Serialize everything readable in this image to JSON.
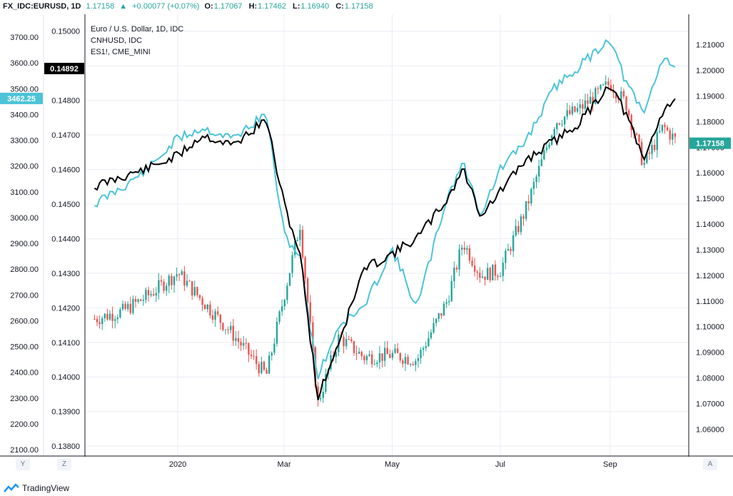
{
  "header": {
    "symbol": "FX_IDC:EURUSD, 1D",
    "last": "1.17158",
    "change_arrow": "▲",
    "change": "+0.00077 (+0.07%)",
    "ohlc": [
      {
        "label": "O:",
        "value": "1.17067"
      },
      {
        "label": "H:",
        "value": "1.17462"
      },
      {
        "label": "L:",
        "value": "1.16940"
      },
      {
        "label": "C:",
        "value": "1.17158"
      }
    ]
  },
  "legend": [
    "Euro / U.S. Dollar, 1D, IDC",
    "CNHUSD, IDC",
    "ES1!, CME_MINI"
  ],
  "buttons": {
    "y": "Y",
    "z": "Z",
    "a": "A"
  },
  "branding": "TradingView",
  "colors": {
    "up": "#26a69a",
    "down": "#ef5350",
    "cnh": "#4dc3d8",
    "es": "#000000"
  },
  "chart_data": {
    "type": "line",
    "x_ticks": [
      "2020",
      "Mar",
      "May",
      "Jul",
      "Sep"
    ],
    "axes": {
      "es_axis": {
        "range": [
          2100,
          3750
        ],
        "ticks": [
          "3700.00",
          "3600.00",
          "3500.00",
          "3400.00",
          "3300.00",
          "3200.00",
          "3100.00",
          "3000.00",
          "2900.00",
          "2800.00",
          "2700.00",
          "2600.00",
          "2500.00",
          "2400.00",
          "2300.00",
          "2200.00",
          "2100.00"
        ],
        "marker": "3462.25"
      },
      "cnh_axis": {
        "range": [
          0.1379,
          0.1502
        ],
        "ticks": [
          "0.15000",
          "0.14900",
          "0.14800",
          "0.14700",
          "0.14600",
          "0.14500",
          "0.14400",
          "0.14300",
          "0.14200",
          "0.14100",
          "0.14000",
          "0.13900",
          "0.13800"
        ],
        "marker": "0.14892"
      },
      "eur_axis": {
        "range": [
          1.052,
          1.218
        ],
        "ticks": [
          "1.21000",
          "1.20000",
          "1.19000",
          "1.18000",
          "1.17000",
          "1.16000",
          "1.15000",
          "1.14000",
          "1.13000",
          "1.12000",
          "1.11000",
          "1.10000",
          "1.09000",
          "1.08000",
          "1.07000",
          "1.06000"
        ],
        "marker": "1.17158"
      }
    },
    "series": [
      {
        "name": "Euro / U.S. Dollar, 1D, IDC",
        "type": "candlestick",
        "x": [
          "2019-11-15",
          "2019-12-01",
          "2019-12-15",
          "2020-01-01",
          "2020-01-15",
          "2020-02-01",
          "2020-02-20",
          "2020-03-01",
          "2020-03-10",
          "2020-03-20",
          "2020-04-01",
          "2020-04-15",
          "2020-05-01",
          "2020-05-15",
          "2020-06-01",
          "2020-06-10",
          "2020-06-20",
          "2020-07-01",
          "2020-07-15",
          "2020-08-01",
          "2020-08-15",
          "2020-09-01",
          "2020-09-10",
          "2020-09-20",
          "2020-10-01",
          "2020-10-09"
        ],
        "close": [
          1.103,
          1.106,
          1.112,
          1.121,
          1.11,
          1.097,
          1.081,
          1.112,
          1.14,
          1.07,
          1.096,
          1.088,
          1.089,
          1.087,
          1.11,
          1.133,
          1.12,
          1.122,
          1.145,
          1.18,
          1.185,
          1.195,
          1.187,
          1.163,
          1.178,
          1.172
        ]
      },
      {
        "name": "CNHUSD, IDC",
        "type": "line",
        "x": [
          "2019-11-15",
          "2019-12-01",
          "2019-12-15",
          "2020-01-01",
          "2020-01-15",
          "2020-02-01",
          "2020-02-20",
          "2020-03-01",
          "2020-03-10",
          "2020-03-20",
          "2020-04-01",
          "2020-04-15",
          "2020-05-01",
          "2020-05-15",
          "2020-06-01",
          "2020-06-10",
          "2020-06-20",
          "2020-07-01",
          "2020-07-15",
          "2020-08-01",
          "2020-08-15",
          "2020-09-01",
          "2020-09-10",
          "2020-09-20",
          "2020-10-01",
          "2020-10-09"
        ],
        "values": [
          0.145,
          0.1455,
          0.146,
          0.1469,
          0.1472,
          0.1469,
          0.1476,
          0.1441,
          0.1435,
          0.14,
          0.1415,
          0.142,
          0.1437,
          0.142,
          0.1452,
          0.1462,
          0.1447,
          0.146,
          0.1468,
          0.1484,
          0.149,
          0.1498,
          0.1485,
          0.1476,
          0.1493,
          0.1489
        ]
      },
      {
        "name": "ES1!, CME_MINI",
        "type": "line",
        "x": [
          "2019-11-15",
          "2019-12-01",
          "2019-12-15",
          "2020-01-01",
          "2020-01-15",
          "2020-02-01",
          "2020-02-20",
          "2020-03-01",
          "2020-03-10",
          "2020-03-20",
          "2020-04-01",
          "2020-04-15",
          "2020-05-01",
          "2020-05-15",
          "2020-06-01",
          "2020-06-10",
          "2020-06-20",
          "2020-07-01",
          "2020-07-15",
          "2020-08-01",
          "2020-08-15",
          "2020-09-01",
          "2020-09-10",
          "2020-09-20",
          "2020-10-01",
          "2020-10-09"
        ],
        "values": [
          3120,
          3160,
          3190,
          3240,
          3320,
          3280,
          3380,
          3050,
          2860,
          2300,
          2520,
          2800,
          2860,
          2920,
          3070,
          3190,
          3010,
          3100,
          3220,
          3300,
          3370,
          3520,
          3400,
          3220,
          3420,
          3470
        ]
      }
    ],
    "xlabel": "",
    "ylabel": ""
  }
}
